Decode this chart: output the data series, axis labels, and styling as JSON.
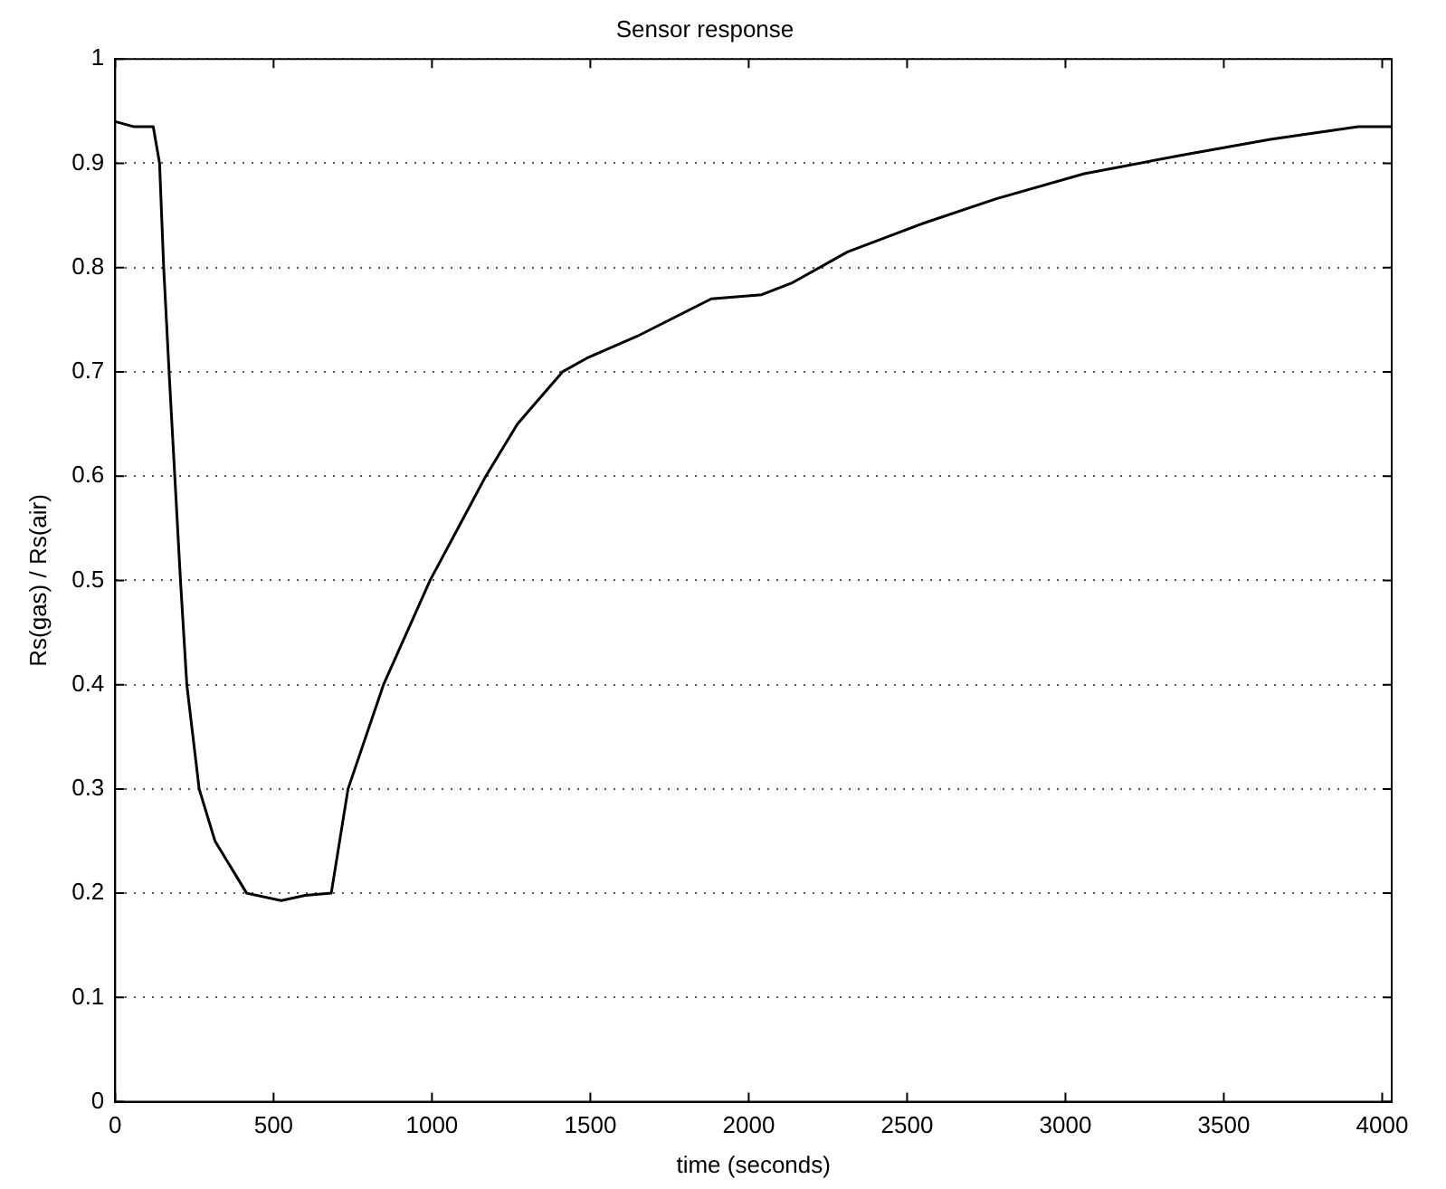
{
  "chart_data": {
    "type": "line",
    "title": "Sensor response",
    "xlabel": "time (seconds)",
    "ylabel": "Rs(gas) / Rs(air)",
    "x": [
      0,
      60,
      120,
      140,
      153,
      170,
      188,
      206,
      226,
      265,
      315,
      415,
      524,
      600,
      682,
      735,
      847,
      994,
      1170,
      1270,
      1412,
      1488,
      1647,
      1882,
      2041,
      2135,
      2312,
      2547,
      2782,
      3059,
      3371,
      3647,
      3924,
      4030
    ],
    "series": [
      {
        "color": "#000000",
        "values": [
          0.94,
          0.935,
          0.935,
          0.9,
          0.8,
          0.7,
          0.6,
          0.5,
          0.4,
          0.3,
          0.25,
          0.2,
          0.193,
          0.198,
          0.2,
          0.3,
          0.4,
          0.5,
          0.6,
          0.65,
          0.7,
          0.713,
          0.734,
          0.77,
          0.774,
          0.785,
          0.815,
          0.842,
          0.866,
          0.89,
          0.908,
          0.923,
          0.935,
          0.935
        ]
      }
    ],
    "xlim": [
      0,
      4030
    ],
    "xticks": [
      0,
      500,
      1000,
      1500,
      2000,
      2500,
      3000,
      3500,
      4000
    ],
    "ylim": [
      0,
      1
    ],
    "yticks": [
      0,
      0.1,
      0.2,
      0.3,
      0.4,
      0.5,
      0.6,
      0.7,
      0.8,
      0.9,
      1
    ],
    "grid": "y",
    "legend": false,
    "marker": "none",
    "line_style": "solid"
  }
}
